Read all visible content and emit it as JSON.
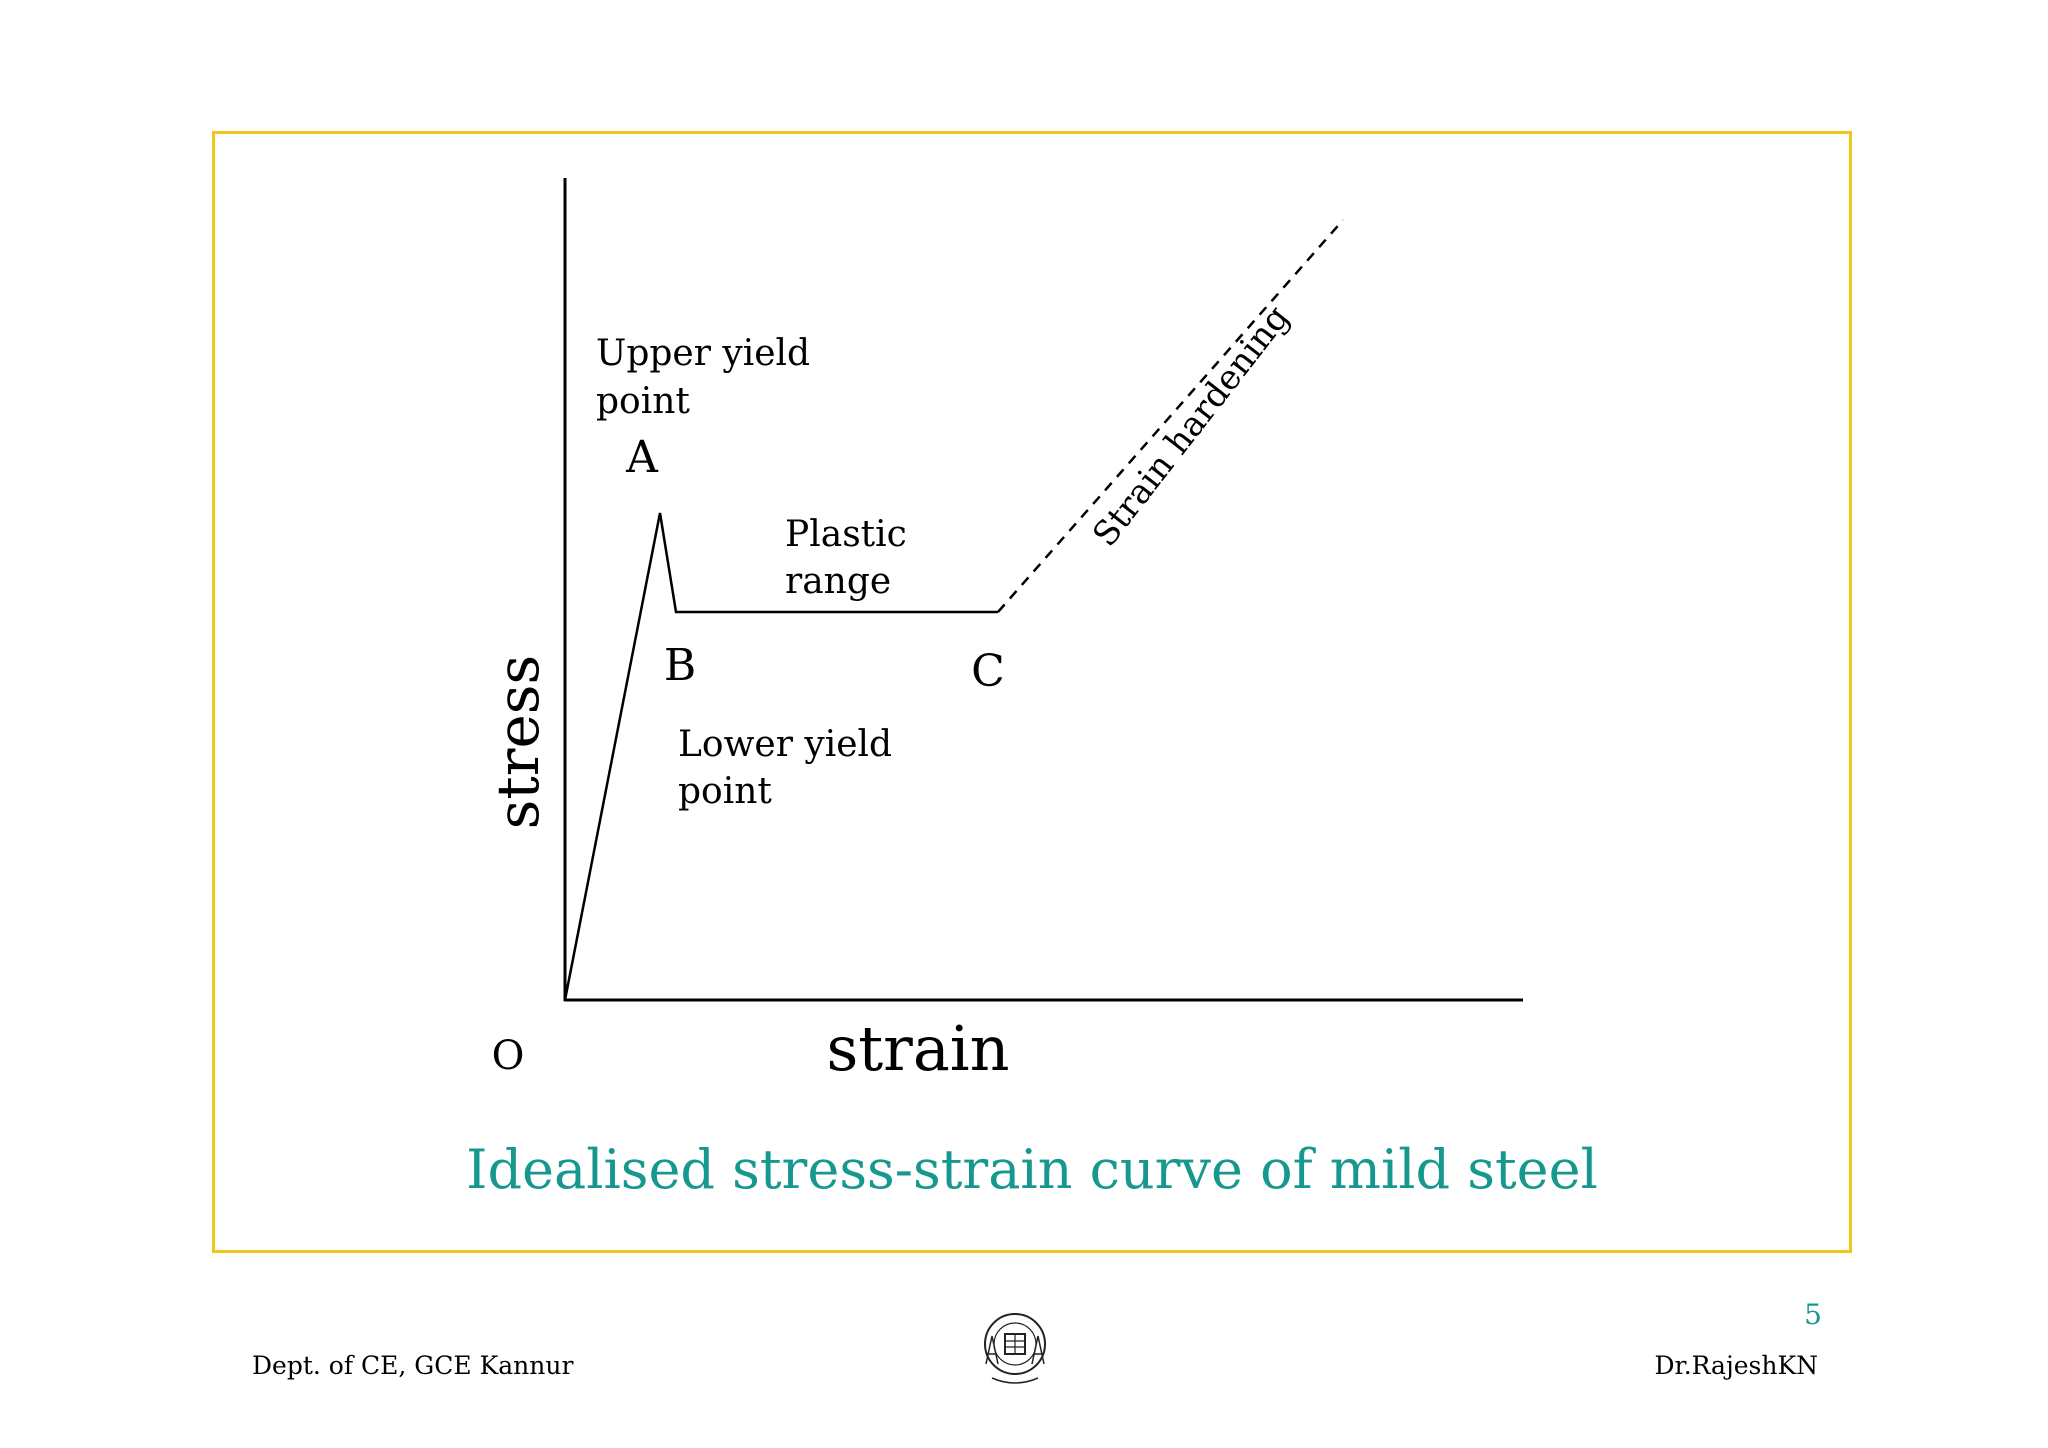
{
  "colors": {
    "frame_border": "#f2c71d",
    "caption": "#17988f",
    "page_number": "#17988f"
  },
  "diagram": {
    "y_axis_label": "stress",
    "x_axis_label": "strain",
    "origin_label": "O",
    "point_a_label": "A",
    "point_b_label": "B",
    "point_c_label": "C",
    "upper_yield_line1": "Upper yield",
    "upper_yield_line2": "point",
    "lower_yield_line1": "Lower yield",
    "lower_yield_line2": "point",
    "plastic_line1": "Plastic",
    "plastic_line2": "range",
    "strain_hardening": "Strain hardening"
  },
  "caption": "Idealised stress-strain curve of mild steel",
  "footer": {
    "left": "Dept. of CE, GCE Kannur",
    "right": "Dr.RajeshKN",
    "page_number": "5",
    "logo_icon": "college-seal-icon"
  }
}
